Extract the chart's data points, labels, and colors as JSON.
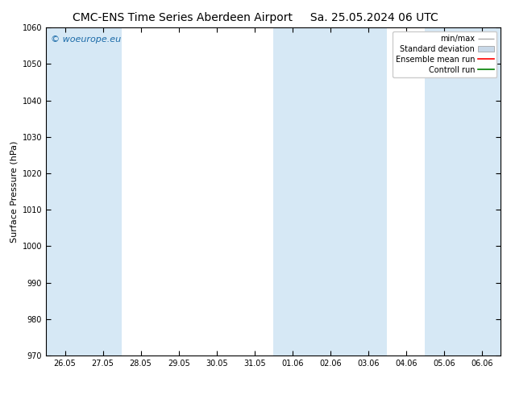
{
  "title_left": "CMC-ENS Time Series Aberdeen Airport",
  "title_right": "Sa. 25.05.2024 06 UTC",
  "ylabel": "Surface Pressure (hPa)",
  "ylim": [
    970,
    1060
  ],
  "yticks": [
    970,
    980,
    990,
    1000,
    1010,
    1020,
    1030,
    1040,
    1050,
    1060
  ],
  "xlabels": [
    "26.05",
    "27.05",
    "28.05",
    "29.05",
    "30.05",
    "31.05",
    "01.06",
    "02.06",
    "03.06",
    "04.06",
    "05.06",
    "06.06"
  ],
  "shaded_indices": [
    0,
    1,
    6,
    7,
    8,
    10,
    11
  ],
  "shade_color": "#d6e8f5",
  "watermark": "© woeurope.eu",
  "watermark_color": "#1a6aa8",
  "legend_items": [
    "min/max",
    "Standard deviation",
    "Ensemble mean run",
    "Controll run"
  ],
  "legend_line_colors": [
    "#aaaaaa",
    "#c8d8e8",
    "#ff0000",
    "#008000"
  ],
  "background_color": "#ffffff",
  "title_fontsize": 10,
  "tick_fontsize": 7,
  "ylabel_fontsize": 8,
  "legend_fontsize": 7
}
